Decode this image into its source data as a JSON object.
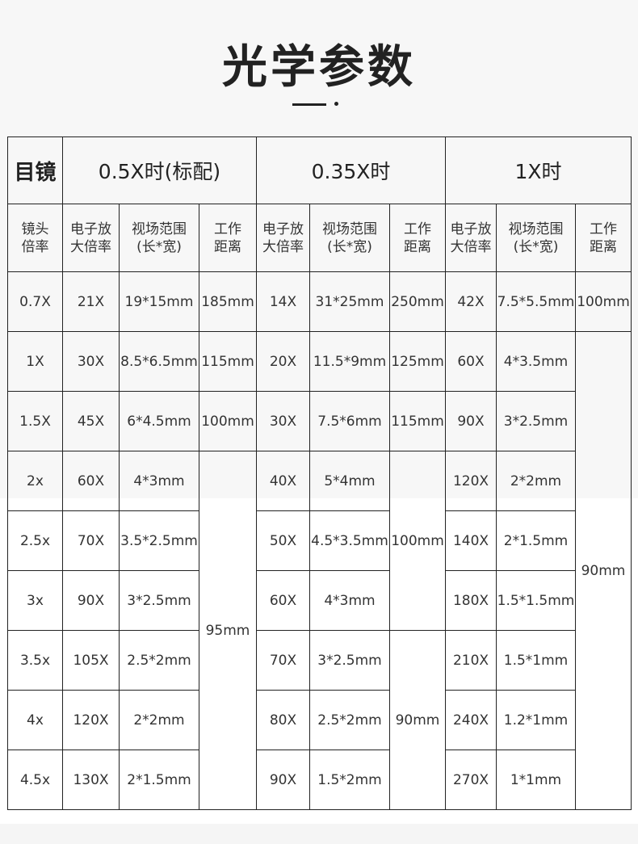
{
  "title": "光学参数",
  "header": {
    "eyepiece": "目镜",
    "groups": [
      "0.5X时(标配)",
      "0.35X时",
      "1X时"
    ]
  },
  "subheader": {
    "lens": [
      "镜头",
      "倍率"
    ],
    "zoom": [
      "电子放",
      "大倍率"
    ],
    "fov": [
      "视场范围",
      "(长*宽)"
    ],
    "wd": [
      "工作",
      "距离"
    ]
  },
  "rows": [
    {
      "lens": "0.7X",
      "a_zoom": "21X",
      "a_fov": "19*15mm",
      "b_zoom": "14X",
      "b_fov": "31*25mm",
      "c_zoom": "42X",
      "c_fov": "7.5*5.5mm"
    },
    {
      "lens": "1X",
      "a_zoom": "30X",
      "a_fov": "8.5*6.5mm",
      "b_zoom": "20X",
      "b_fov": "11.5*9mm",
      "c_zoom": "60X",
      "c_fov": "4*3.5mm"
    },
    {
      "lens": "1.5X",
      "a_zoom": "45X",
      "a_fov": "6*4.5mm",
      "b_zoom": "30X",
      "b_fov": "7.5*6mm",
      "c_zoom": "90X",
      "c_fov": "3*2.5mm"
    },
    {
      "lens": "2x",
      "a_zoom": "60X",
      "a_fov": "4*3mm",
      "b_zoom": "40X",
      "b_fov": "5*4mm",
      "c_zoom": "120X",
      "c_fov": "2*2mm"
    },
    {
      "lens": "2.5x",
      "a_zoom": "70X",
      "a_fov": "3.5*2.5mm",
      "b_zoom": "50X",
      "b_fov": "4.5*3.5mm",
      "c_zoom": "140X",
      "c_fov": "2*1.5mm"
    },
    {
      "lens": "3x",
      "a_zoom": "90X",
      "a_fov": "3*2.5mm",
      "b_zoom": "60X",
      "b_fov": "4*3mm",
      "c_zoom": "180X",
      "c_fov": "1.5*1.5mm"
    },
    {
      "lens": "3.5x",
      "a_zoom": "105X",
      "a_fov": "2.5*2mm",
      "b_zoom": "70X",
      "b_fov": "3*2.5mm",
      "c_zoom": "210X",
      "c_fov": "1.5*1mm"
    },
    {
      "lens": "4x",
      "a_zoom": "120X",
      "a_fov": "2*2mm",
      "b_zoom": "80X",
      "b_fov": "2.5*2mm",
      "c_zoom": "240X",
      "c_fov": "1.2*1mm"
    },
    {
      "lens": "4.5x",
      "a_zoom": "130X",
      "a_fov": "2*1.5mm",
      "b_zoom": "90X",
      "b_fov": "1.5*2mm",
      "c_zoom": "270X",
      "c_fov": "1*1mm"
    }
  ],
  "wd": {
    "a": [
      "185mm",
      "115mm",
      "100mm",
      "95mm"
    ],
    "b": [
      "250mm",
      "125mm",
      "115mm",
      "100mm",
      "90mm"
    ],
    "c": [
      "100mm",
      "90mm"
    ]
  }
}
